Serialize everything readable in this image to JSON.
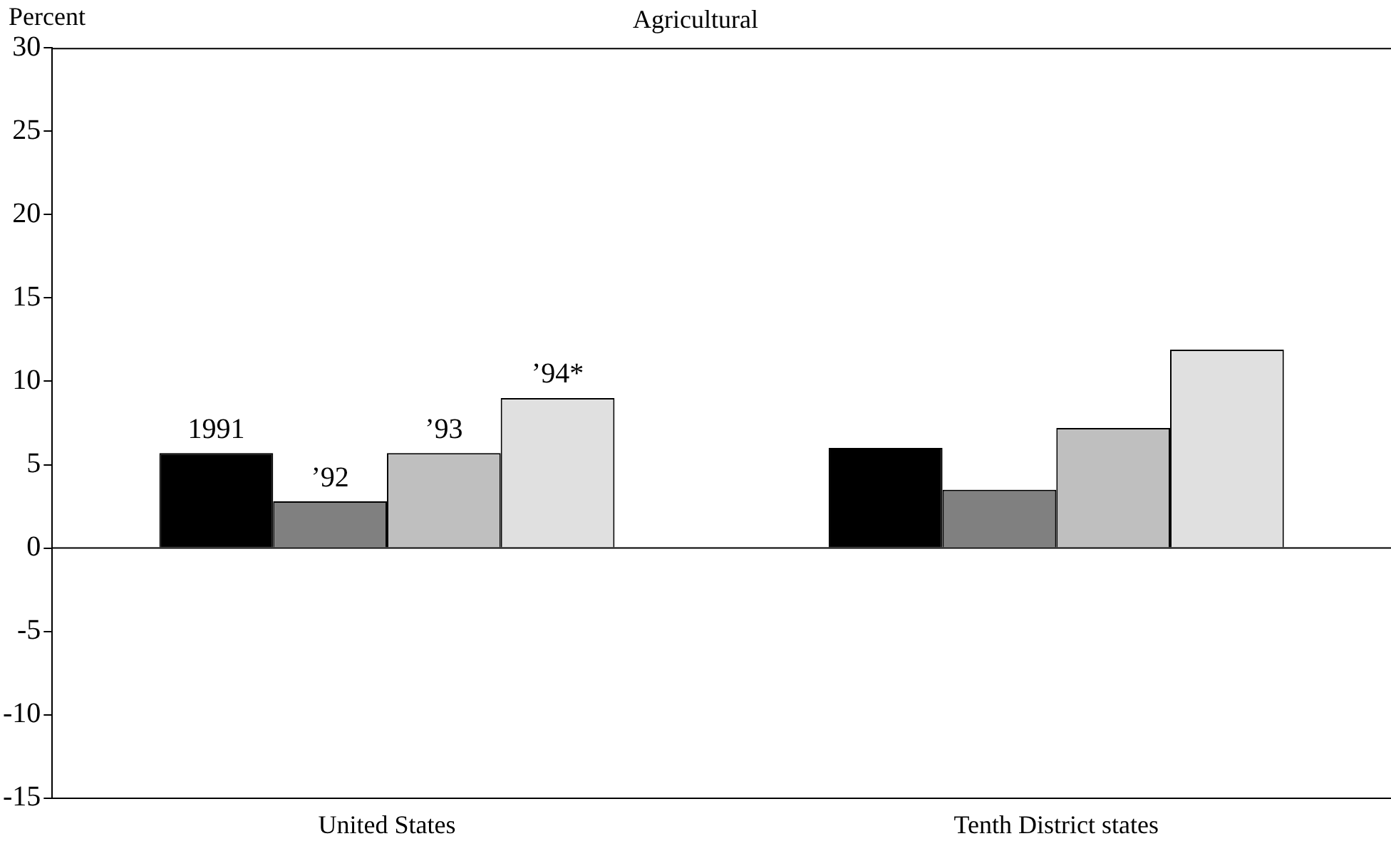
{
  "chart_data": {
    "type": "bar",
    "title": "Agricultural",
    "ylabel": "Percent",
    "categories": [
      "United States",
      "Tenth District states"
    ],
    "series": [
      {
        "name": "1991",
        "color": "#000000",
        "values": [
          5.7,
          6.0
        ]
      },
      {
        "name": "’92",
        "color": "#808080",
        "values": [
          2.8,
          3.5
        ]
      },
      {
        "name": "’93",
        "color": "#bfbfbf",
        "values": [
          5.7,
          7.2
        ]
      },
      {
        "name": "’94*",
        "color": "#e0e0e0",
        "values": [
          9.0,
          11.9
        ]
      }
    ],
    "ylim": [
      -15,
      30
    ],
    "yticks": [
      -15,
      -10,
      -5,
      0,
      5,
      10,
      15,
      20,
      25,
      30
    ],
    "ref_lines": [
      {
        "axis": "y",
        "value": 0
      }
    ],
    "grid": false,
    "legend": false
  }
}
